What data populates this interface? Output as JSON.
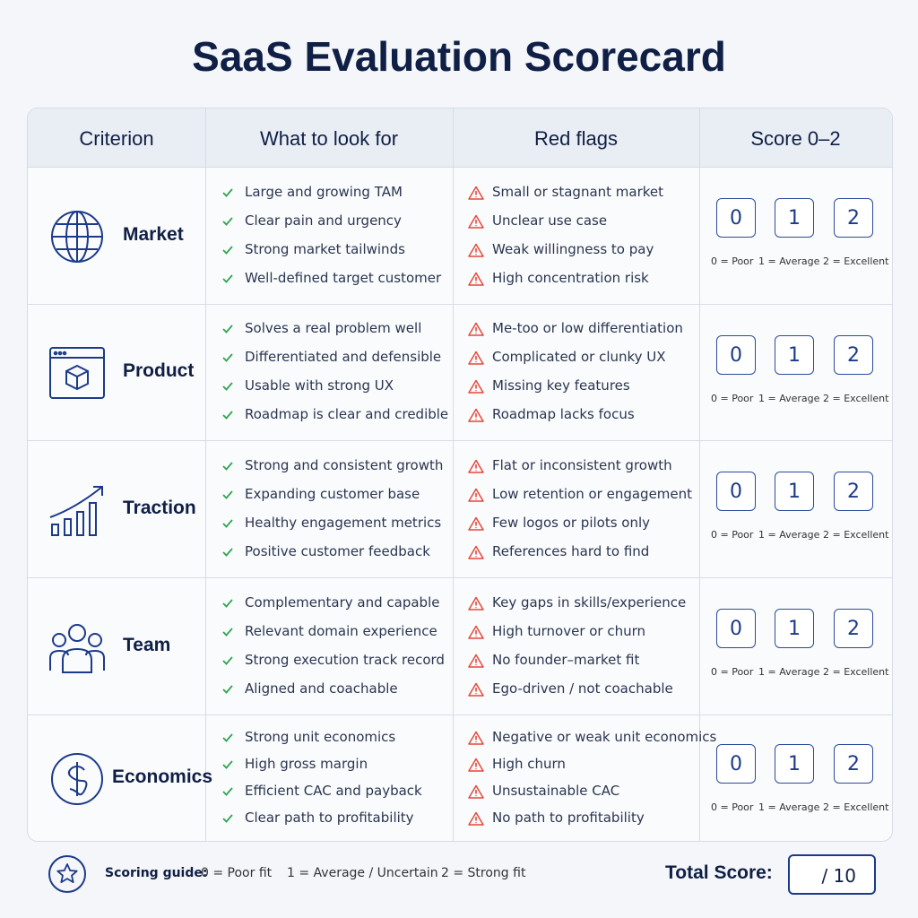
{
  "header": {
    "title": "SaaS Evaluation Scorecard"
  },
  "table": {
    "columns": [
      "Criterion",
      "What to look for",
      "Red flags",
      "Score 0–2"
    ],
    "rows": [
      {
        "criterion": "Market",
        "look_for": [
          "Large and growing TAM",
          "Clear pain and urgency",
          "Strong market tailwinds",
          "Well-defined target customer"
        ],
        "red_flags": [
          "Small or stagnant market",
          "Unclear use case",
          "Weak willingness to pay",
          "High concentration risk"
        ]
      },
      {
        "criterion": "Product",
        "look_for": [
          "Solves a real problem well",
          "Differentiated and defensible",
          "Usable with strong UX",
          "Roadmap is clear and credible"
        ],
        "red_flags": [
          "Me-too or low differentiation",
          "Complicated or clunky UX",
          "Missing key features",
          "Roadmap lacks focus"
        ]
      },
      {
        "criterion": "Traction",
        "look_for": [
          "Strong and consistent growth",
          "Expanding customer base",
          "Healthy engagement metrics",
          "Positive customer feedback"
        ],
        "red_flags": [
          "Flat or inconsistent growth",
          "Low retention or engagement",
          "Few logos or pilots only",
          "References hard to find"
        ]
      },
      {
        "criterion": "Team",
        "look_for": [
          "Complementary and capable",
          "Relevant domain experience",
          "Strong execution track record",
          "Aligned and coachable"
        ],
        "red_flags": [
          "Key gaps in skills/experience",
          "High turnover or churn",
          "No founder–market fit",
          "Ego-driven / not coachable"
        ]
      },
      {
        "criterion": "Economics",
        "look_for": [
          "Strong unit economics",
          "High gross margin",
          "Efficient CAC and payback",
          "Clear path to profitability"
        ],
        "red_flags": [
          "Negative or weak unit economics",
          "High churn",
          "Unsustainable CAC",
          "No path to profitability"
        ]
      }
    ]
  },
  "score_options": [
    "0",
    "1",
    "2"
  ],
  "score_legend": [
    "0 = Poor",
    "1 = Average",
    "2 = Excellent"
  ],
  "footer": {
    "guide_label": "Scoring guide:",
    "guide_items": [
      "0 = Poor fit",
      "1 = Average / Uncertain",
      "2 = Strong fit"
    ],
    "total_label": "Total Score:",
    "total_value": "/ 10"
  }
}
